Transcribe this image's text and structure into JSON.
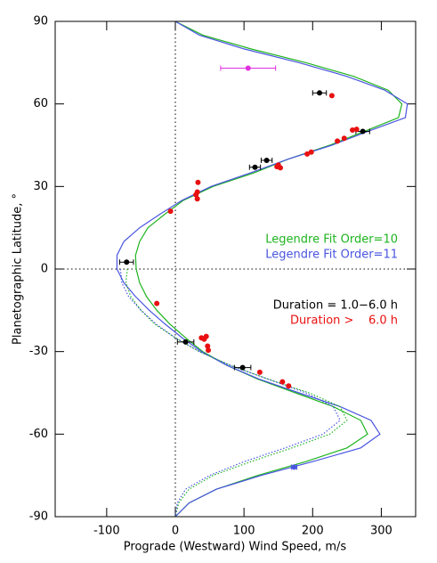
{
  "chart_data": {
    "type": "line",
    "xlabel": "Prograde (Westward) Wind Speed, m/s",
    "ylabel": "Planetographic Latitude, °",
    "xlim": [
      -175,
      350
    ],
    "ylim": [
      -90,
      90
    ],
    "xticks": [
      -100,
      0,
      100,
      200,
      300
    ],
    "yticks": [
      -90,
      -60,
      -30,
      0,
      30,
      60,
      90
    ],
    "zero_lines": true,
    "series": [
      {
        "name": "Legendre Fit Order=10",
        "color": "#1fb41f",
        "style": "solid",
        "x": [
          0,
          40,
          110,
          190,
          260,
          310,
          330,
          325,
          275,
          225,
          165,
          115,
          55,
          12,
          -15,
          -40,
          -52,
          -58,
          -57,
          -52,
          -42,
          -27,
          -8,
          15,
          40,
          75,
          120,
          175,
          230,
          270,
          280,
          250,
          190,
          120,
          60,
          20,
          0
        ],
        "y": [
          90,
          85,
          80,
          75,
          70,
          65,
          60,
          55,
          50,
          45,
          40,
          35,
          30,
          25,
          20,
          15,
          10,
          5,
          0,
          -5,
          -10,
          -15,
          -20,
          -25,
          -30,
          -35,
          -40,
          -45,
          -50,
          -55,
          -60,
          -65,
          -70,
          -75,
          -80,
          -85,
          -90
        ]
      },
      {
        "name": "Legendre Fit Order=11",
        "color": "#4a55e0",
        "style": "solid",
        "x": [
          0,
          35,
          100,
          180,
          250,
          305,
          338,
          335,
          280,
          228,
          165,
          110,
          52,
          10,
          -22,
          -52,
          -75,
          -85,
          -85,
          -75,
          -58,
          -38,
          -15,
          10,
          38,
          75,
          122,
          180,
          240,
          285,
          298,
          270,
          200,
          125,
          60,
          20,
          0
        ],
        "y": [
          90,
          85,
          80,
          75,
          70,
          65,
          60,
          55,
          50,
          45,
          40,
          35,
          30,
          25,
          20,
          15,
          10,
          5,
          0,
          -5,
          -10,
          -15,
          -20,
          -25,
          -30,
          -35,
          -40,
          -45,
          -50,
          -55,
          -60,
          -65,
          -70,
          -75,
          -80,
          -85,
          -90
        ]
      },
      {
        "color": "#1fb41f",
        "style": "dotted",
        "x": [
          -70,
          -72,
          -65,
          -50,
          -30,
          0,
          35,
          80,
          135,
          195,
          240,
          250,
          225,
          170,
          110,
          55,
          20,
          5,
          0
        ],
        "y": [
          0,
          -5,
          -10,
          -15,
          -20,
          -25,
          -30,
          -35,
          -40,
          -45,
          -50,
          -55,
          -60,
          -65,
          -70,
          -75,
          -80,
          -85,
          -90
        ]
      },
      {
        "color": "#4a55e0",
        "style": "dotted",
        "x": [
          -80,
          -78,
          -68,
          -50,
          -28,
          0,
          35,
          80,
          135,
          190,
          230,
          240,
          215,
          160,
          100,
          50,
          15,
          3,
          0
        ],
        "y": [
          0,
          -5,
          -10,
          -15,
          -20,
          -25,
          -30,
          -35,
          -40,
          -45,
          -50,
          -55,
          -60,
          -65,
          -70,
          -75,
          -80,
          -85,
          -90
        ]
      }
    ],
    "points": [
      {
        "color": "#000000",
        "x": [
          210,
          273,
          133,
          116,
          -71,
          15,
          98
        ],
        "y": [
          64,
          50,
          39.5,
          37,
          2.5,
          -26.5,
          -35.8
        ],
        "xerr": [
          10,
          10,
          8,
          8,
          10,
          12,
          12
        ]
      },
      {
        "color": "#e81010",
        "x": [
          228,
          258,
          264,
          246,
          236,
          198,
          192,
          150,
          153,
          148,
          33,
          32,
          30,
          32,
          -7,
          -27,
          38,
          45,
          42,
          47,
          48,
          123,
          156,
          165
        ],
        "y": [
          63,
          50.5,
          50.8,
          47.5,
          46.5,
          42.5,
          41.8,
          37.8,
          36.8,
          37.2,
          31.5,
          28,
          27,
          25.5,
          21,
          -12.5,
          -25,
          -24.5,
          -25.5,
          -28,
          -29.5,
          -37.5,
          -41,
          -42.5
        ],
        "xerr": [
          0,
          0,
          0,
          0,
          0,
          0,
          0,
          0,
          0,
          0,
          0,
          0,
          0,
          0,
          0,
          0,
          0,
          0,
          0,
          0,
          0,
          0,
          0,
          0
        ]
      },
      {
        "color": "#e030e0",
        "x": [
          106
        ],
        "y": [
          73
        ],
        "xerr": [
          40
        ]
      },
      {
        "color": "#4a55e0",
        "x": [
          173
        ],
        "y": [
          -72
        ],
        "xerr": [
          4
        ]
      }
    ],
    "annotations": [
      {
        "text": "Duration = 1.0−6.0 h",
        "color": "#000000"
      },
      {
        "text": "Duration >    6.0 h",
        "color": "#e81010"
      }
    ]
  }
}
